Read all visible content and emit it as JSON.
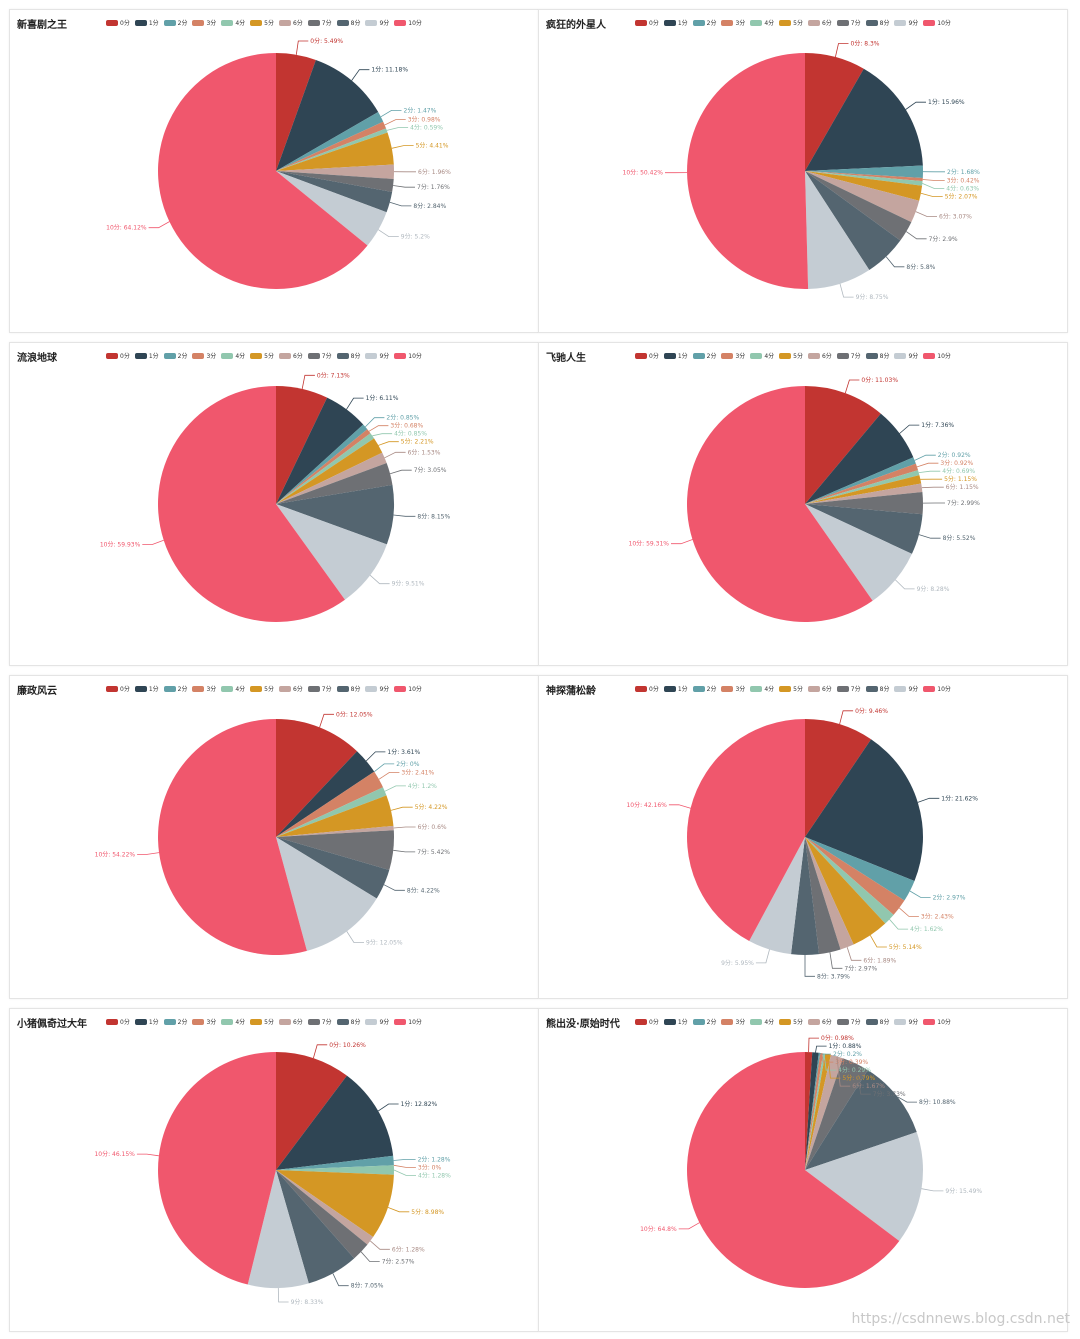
{
  "colors": [
    "#c23531",
    "#2f4554",
    "#61a0a8",
    "#d48265",
    "#91c7ae",
    "#d49724",
    "#c4a59f",
    "#6e7074",
    "#546570",
    "#c4ccd3",
    "#f0576d"
  ],
  "legend_labels": [
    "0分",
    "1分",
    "2分",
    "3分",
    "4分",
    "5分",
    "6分",
    "7分",
    "8分",
    "9分",
    "10分"
  ],
  "watermark": "https://csdnnews.blog.csdn.net",
  "chart_data": [
    {
      "type": "pie",
      "title": "新喜剧之王",
      "categories": [
        "0分",
        "1分",
        "2分",
        "3分",
        "4分",
        "5分",
        "6分",
        "7分",
        "8分",
        "9分",
        "10分"
      ],
      "values": [
        5.49,
        11.18,
        1.47,
        0.98,
        0.59,
        4.41,
        1.96,
        1.76,
        2.84,
        5.2,
        64.12
      ],
      "labels": [
        "0分: 5.49%",
        "1分: 11.18%",
        "2分: 1.47%",
        "3分: 0.98%",
        "4分: 0.59%",
        "5分: 4.41%",
        "6分: 1.96%",
        "7分: 1.76%",
        "8分: 2.84%",
        "9分: 5.2%",
        "10分: 64.12%"
      ]
    },
    {
      "type": "pie",
      "title": "疯狂的外星人",
      "categories": [
        "0分",
        "1分",
        "2分",
        "3分",
        "4分",
        "5分",
        "6分",
        "7分",
        "8分",
        "9分",
        "10分"
      ],
      "values": [
        8.3,
        15.96,
        1.68,
        0.42,
        0.63,
        2.07,
        3.07,
        2.9,
        5.8,
        8.75,
        50.42
      ],
      "labels": [
        "0分: 8.3%",
        "1分: 15.96%",
        "2分: 1.68%",
        "3分: 0.42%",
        "4分: 0.63%",
        "5分: 2.07%",
        "6分: 3.07%",
        "7分: 2.9%",
        "8分: 5.8%",
        "9分: 8.75%",
        "10分: 50.42%"
      ]
    },
    {
      "type": "pie",
      "title": "流浪地球",
      "categories": [
        "0分",
        "1分",
        "2分",
        "3分",
        "4分",
        "5分",
        "6分",
        "7分",
        "8分",
        "9分",
        "10分"
      ],
      "values": [
        7.13,
        6.11,
        0.85,
        0.68,
        0.85,
        2.21,
        1.53,
        3.05,
        8.15,
        9.51,
        59.93
      ],
      "labels": [
        "0分: 7.13%",
        "1分: 6.11%",
        "2分: 0.85%",
        "3分: 0.68%",
        "4分: 0.85%",
        "5分: 2.21%",
        "6分: 1.53%",
        "7分: 3.05%",
        "8分: 8.15%",
        "9分: 9.51%",
        "10分: 59.93%"
      ]
    },
    {
      "type": "pie",
      "title": "飞驰人生",
      "categories": [
        "0分",
        "1分",
        "2分",
        "3分",
        "4分",
        "5分",
        "6分",
        "7分",
        "8分",
        "9分",
        "10分"
      ],
      "values": [
        11.03,
        7.36,
        0.92,
        0.92,
        0.69,
        1.15,
        1.15,
        2.99,
        5.52,
        8.28,
        59.31
      ],
      "labels": [
        "0分: 11.03%",
        "1分: 7.36%",
        "2分: 0.92%",
        "3分: 0.92%",
        "4分: 0.69%",
        "5分: 1.15%",
        "6分: 1.15%",
        "7分: 2.99%",
        "8分: 5.52%",
        "9分: 8.28%",
        "10分: 59.31%"
      ]
    },
    {
      "type": "pie",
      "title": "廉政风云",
      "categories": [
        "0分",
        "1分",
        "2分",
        "3分",
        "4分",
        "5分",
        "6分",
        "7分",
        "8分",
        "9分",
        "10分"
      ],
      "values": [
        12.05,
        3.61,
        0,
        2.41,
        1.2,
        4.22,
        0.6,
        5.42,
        4.22,
        12.05,
        54.22
      ],
      "labels": [
        "0分: 12.05%",
        "1分: 3.61%",
        "2分: 0%",
        "3分: 2.41%",
        "4分: 1.2%",
        "5分: 4.22%",
        "6分: 0.6%",
        "7分: 5.42%",
        "8分: 4.22%",
        "9分: 12.05%",
        "10分: 54.22%"
      ]
    },
    {
      "type": "pie",
      "title": "神探蒲松龄",
      "categories": [
        "0分",
        "1分",
        "2分",
        "3分",
        "4分",
        "5分",
        "6分",
        "7分",
        "8分",
        "9分",
        "10分"
      ],
      "values": [
        9.46,
        21.62,
        2.97,
        2.43,
        1.62,
        5.14,
        1.89,
        2.97,
        3.79,
        5.95,
        42.16
      ],
      "labels": [
        "0分: 9.46%",
        "1分: 21.62%",
        "2分: 2.97%",
        "3分: 2.43%",
        "4分: 1.62%",
        "5分: 5.14%",
        "6分: 1.89%",
        "7分: 2.97%",
        "8分: 3.79%",
        "9分: 5.95%",
        "10分: 42.16%"
      ]
    },
    {
      "type": "pie",
      "title": "小猪佩奇过大年",
      "categories": [
        "0分",
        "1分",
        "2分",
        "3分",
        "4分",
        "5分",
        "6分",
        "7分",
        "8分",
        "9分",
        "10分"
      ],
      "values": [
        10.26,
        12.82,
        1.28,
        0,
        1.28,
        8.98,
        1.28,
        2.57,
        7.05,
        8.33,
        46.15
      ],
      "labels": [
        "0分: 10.26%",
        "1分: 12.82%",
        "2分: 1.28%",
        "3分: 0%",
        "4分: 1.28%",
        "5分: 8.98%",
        "6分: 1.28%",
        "7分: 2.57%",
        "8分: 7.05%",
        "9分: 8.33%",
        "10分: 46.15%"
      ]
    },
    {
      "type": "pie",
      "title": "熊出没·原始时代",
      "categories": [
        "0分",
        "1分",
        "2分",
        "3分",
        "4分",
        "5分",
        "6分",
        "7分",
        "8分",
        "9分",
        "10分"
      ],
      "values": [
        0.98,
        0.88,
        0.2,
        0.39,
        0.29,
        0.79,
        1.67,
        3.73,
        10.88,
        15.49,
        64.8
      ],
      "labels": [
        "0分: 0.98%",
        "1分: 0.88%",
        "2分: 0.2%",
        "3分: 0.39%",
        "4分: 0.29%",
        "5分: 0.79%",
        "6分: 1.67%",
        "7分: 3.73%",
        "8分: 10.88%",
        "9分: 15.49%",
        "10分: 64.8%"
      ]
    }
  ]
}
